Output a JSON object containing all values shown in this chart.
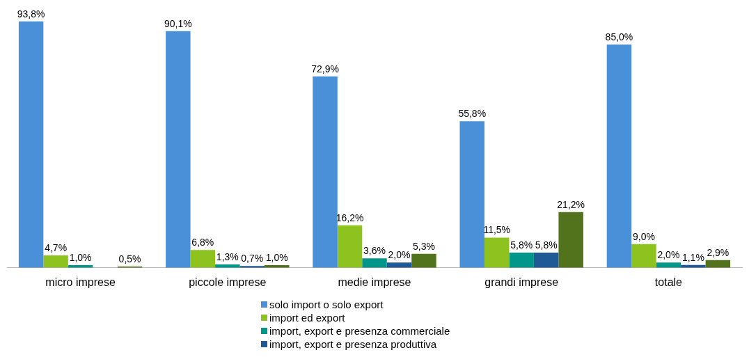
{
  "chart_data": {
    "type": "bar",
    "categories": [
      "micro imprese",
      "piccole imprese",
      "medie imprese",
      "grandi imprese",
      "totale"
    ],
    "series": [
      {
        "name": "solo import o solo export",
        "color": "#4a90d9",
        "values": [
          93.8,
          90.1,
          72.9,
          55.8,
          85.0
        ],
        "value_labels": [
          "93,8%",
          "90,1%",
          "72,9%",
          "55,8%",
          "85,0%"
        ]
      },
      {
        "name": "import ed export",
        "color": "#8dc21f",
        "values": [
          4.7,
          6.8,
          16.2,
          11.5,
          9.0
        ],
        "value_labels": [
          "4,7%",
          "6,8%",
          "16,2%",
          "11,5%",
          "9,0%"
        ]
      },
      {
        "name": "import, export e presenza commerciale",
        "color": "#00968a",
        "values": [
          1.0,
          1.3,
          3.6,
          5.8,
          2.0
        ],
        "value_labels": [
          "1,0%",
          "1,3%",
          "3,6%",
          "5,8%",
          "2,0%"
        ]
      },
      {
        "name": "import, export e presenza produttiva",
        "color": "#1f5a96",
        "values": [
          null,
          0.7,
          2.0,
          5.8,
          1.1
        ],
        "value_labels": [
          null,
          "0,7%",
          "2,0%",
          "5,8%",
          "1,1%"
        ]
      },
      {
        "color": "#52731c",
        "values": [
          0.5,
          1.0,
          5.3,
          21.2,
          2.9
        ],
        "value_labels": [
          "0,5%",
          "1,0%",
          "5,3%",
          "21,2%",
          "2,9%"
        ]
      }
    ],
    "grid": false,
    "legend": "bottom"
  }
}
